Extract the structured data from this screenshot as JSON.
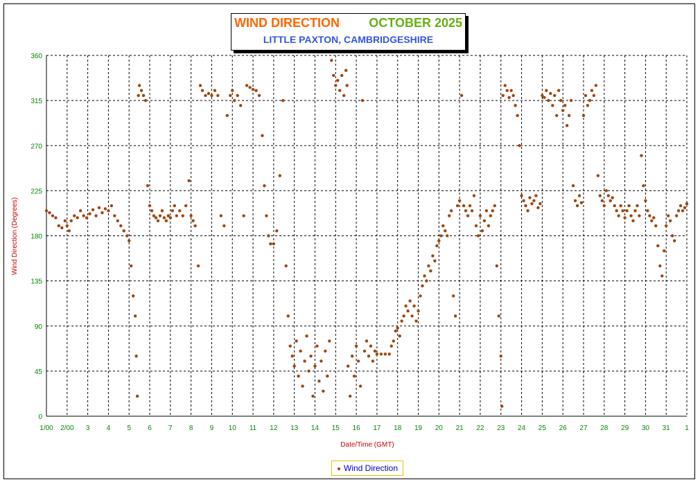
{
  "title": {
    "line1_left": "WIND DIRECTION",
    "line1_right": "OCTOBER 2025",
    "line2": "LITTLE PAXTON, CAMBRIDGESHIRE"
  },
  "colors": {
    "title_orange": "#ff6600",
    "title_green": "#66b010",
    "title_blue": "#3355dd",
    "tick_green": "#008800",
    "axis_label_red": "#cc0000",
    "point_color": "#a0440a",
    "legend_border": "#e8c200"
  },
  "legend": {
    "label": "Wind Direction"
  },
  "chart_data": {
    "type": "scatter",
    "xlabel": "Date/Time (GMT)",
    "ylabel": "Wind Direction (Degrees)",
    "ylim": [
      0,
      360
    ],
    "xlim": [
      1,
      32
    ],
    "grid": true,
    "legend_position": "bottom-center",
    "yticks": [
      0,
      45,
      90,
      135,
      180,
      225,
      270,
      315,
      360
    ],
    "xticks": [
      {
        "x": 1,
        "label": "1/00"
      },
      {
        "x": 2,
        "label": "2/00"
      },
      {
        "x": 3,
        "label": "3"
      },
      {
        "x": 4,
        "label": "4"
      },
      {
        "x": 5,
        "label": "5"
      },
      {
        "x": 6,
        "label": "6"
      },
      {
        "x": 7,
        "label": "7"
      },
      {
        "x": 8,
        "label": "8"
      },
      {
        "x": 9,
        "label": "9"
      },
      {
        "x": 10,
        "label": "10"
      },
      {
        "x": 11,
        "label": "11"
      },
      {
        "x": 12,
        "label": "12"
      },
      {
        "x": 13,
        "label": "13"
      },
      {
        "x": 14,
        "label": "14"
      },
      {
        "x": 15,
        "label": "15"
      },
      {
        "x": 16,
        "label": "16"
      },
      {
        "x": 17,
        "label": "17"
      },
      {
        "x": 18,
        "label": "18"
      },
      {
        "x": 19,
        "label": "19"
      },
      {
        "x": 20,
        "label": "20"
      },
      {
        "x": 21,
        "label": "21"
      },
      {
        "x": 22,
        "label": "22"
      },
      {
        "x": 23,
        "label": "23"
      },
      {
        "x": 24,
        "label": "24"
      },
      {
        "x": 25,
        "label": "25"
      },
      {
        "x": 26,
        "label": "26"
      },
      {
        "x": 27,
        "label": "27"
      },
      {
        "x": 28,
        "label": "28"
      },
      {
        "x": 29,
        "label": "29"
      },
      {
        "x": 30,
        "label": "30"
      },
      {
        "x": 31,
        "label": "31"
      },
      {
        "x": 32,
        "label": "1"
      }
    ],
    "series": [
      {
        "name": "Wind Direction",
        "points": [
          [
            1.0,
            205
          ],
          [
            1.15,
            203
          ],
          [
            1.3,
            200
          ],
          [
            1.45,
            198
          ],
          [
            1.6,
            190
          ],
          [
            1.75,
            188
          ],
          [
            1.9,
            195
          ],
          [
            2.0,
            190
          ],
          [
            2.1,
            185
          ],
          [
            2.2,
            195
          ],
          [
            2.35,
            200
          ],
          [
            2.5,
            198
          ],
          [
            2.65,
            205
          ],
          [
            2.8,
            200
          ],
          [
            2.95,
            198
          ],
          [
            3.1,
            202
          ],
          [
            3.25,
            206
          ],
          [
            3.4,
            200
          ],
          [
            3.55,
            208
          ],
          [
            3.7,
            203
          ],
          [
            3.85,
            207
          ],
          [
            4.0,
            205
          ],
          [
            4.15,
            210
          ],
          [
            4.3,
            200
          ],
          [
            4.45,
            195
          ],
          [
            4.6,
            190
          ],
          [
            4.75,
            185
          ],
          [
            4.9,
            180
          ],
          [
            5.0,
            175
          ],
          [
            5.1,
            150
          ],
          [
            5.2,
            120
          ],
          [
            5.3,
            100
          ],
          [
            5.35,
            60
          ],
          [
            5.4,
            20
          ],
          [
            5.45,
            320
          ],
          [
            5.5,
            330
          ],
          [
            5.6,
            325
          ],
          [
            5.7,
            320
          ],
          [
            5.8,
            315
          ],
          [
            5.9,
            230
          ],
          [
            6.0,
            210
          ],
          [
            6.1,
            205
          ],
          [
            6.2,
            200
          ],
          [
            6.3,
            198
          ],
          [
            6.4,
            195
          ],
          [
            6.5,
            200
          ],
          [
            6.6,
            205
          ],
          [
            6.7,
            198
          ],
          [
            6.8,
            195
          ],
          [
            6.9,
            200
          ],
          [
            7.0,
            198
          ],
          [
            7.1,
            205
          ],
          [
            7.2,
            210
          ],
          [
            7.3,
            200
          ],
          [
            7.45,
            205
          ],
          [
            7.6,
            200
          ],
          [
            7.75,
            210
          ],
          [
            7.9,
            235
          ],
          [
            8.0,
            200
          ],
          [
            8.1,
            195
          ],
          [
            8.2,
            190
          ],
          [
            8.35,
            150
          ],
          [
            8.45,
            330
          ],
          [
            8.55,
            325
          ],
          [
            8.7,
            320
          ],
          [
            8.85,
            322
          ],
          [
            9.0,
            320
          ],
          [
            9.15,
            325
          ],
          [
            9.3,
            320
          ],
          [
            9.45,
            200
          ],
          [
            9.6,
            190
          ],
          [
            9.75,
            300
          ],
          [
            9.9,
            320
          ],
          [
            10.0,
            325
          ],
          [
            10.1,
            315
          ],
          [
            10.25,
            320
          ],
          [
            10.4,
            310
          ],
          [
            10.55,
            200
          ],
          [
            10.7,
            330
          ],
          [
            10.85,
            328
          ],
          [
            11.0,
            326
          ],
          [
            11.15,
            325
          ],
          [
            11.3,
            320
          ],
          [
            11.45,
            280
          ],
          [
            11.55,
            230
          ],
          [
            11.65,
            200
          ],
          [
            11.75,
            180
          ],
          [
            11.85,
            172
          ],
          [
            12.0,
            172
          ],
          [
            12.15,
            185
          ],
          [
            12.3,
            240
          ],
          [
            12.45,
            315
          ],
          [
            12.6,
            150
          ],
          [
            12.7,
            100
          ],
          [
            12.8,
            70
          ],
          [
            12.9,
            60
          ],
          [
            13.0,
            50
          ],
          [
            13.1,
            75
          ],
          [
            13.2,
            40
          ],
          [
            13.3,
            65
          ],
          [
            13.4,
            30
          ],
          [
            13.5,
            55
          ],
          [
            13.6,
            80
          ],
          [
            13.7,
            45
          ],
          [
            13.8,
            60
          ],
          [
            13.9,
            20
          ],
          [
            14.0,
            50
          ],
          [
            14.1,
            70
          ],
          [
            14.2,
            35
          ],
          [
            14.3,
            55
          ],
          [
            14.4,
            25
          ],
          [
            14.5,
            65
          ],
          [
            14.6,
            40
          ],
          [
            14.7,
            75
          ],
          [
            14.8,
            355
          ],
          [
            14.9,
            340
          ],
          [
            15.0,
            330
          ],
          [
            15.1,
            335
          ],
          [
            15.2,
            325
          ],
          [
            15.3,
            340
          ],
          [
            15.4,
            320
          ],
          [
            15.5,
            345
          ],
          [
            15.55,
            330
          ],
          [
            15.6,
            50
          ],
          [
            15.7,
            20
          ],
          [
            15.8,
            60
          ],
          [
            15.9,
            40
          ],
          [
            16.0,
            70
          ],
          [
            16.1,
            55
          ],
          [
            16.2,
            30
          ],
          [
            16.3,
            315
          ],
          [
            16.4,
            65
          ],
          [
            16.5,
            75
          ],
          [
            16.6,
            60
          ],
          [
            16.7,
            70
          ],
          [
            16.8,
            55
          ],
          [
            16.9,
            65
          ],
          [
            17.0,
            62
          ],
          [
            17.2,
            62
          ],
          [
            17.4,
            62
          ],
          [
            17.6,
            62
          ],
          [
            17.7,
            70
          ],
          [
            17.8,
            75
          ],
          [
            17.9,
            85
          ],
          [
            18.0,
            88
          ],
          [
            18.1,
            80
          ],
          [
            18.2,
            95
          ],
          [
            18.3,
            100
          ],
          [
            18.4,
            110
          ],
          [
            18.5,
            105
          ],
          [
            18.6,
            115
          ],
          [
            18.7,
            100
          ],
          [
            18.8,
            110
          ],
          [
            18.9,
            95
          ],
          [
            19.0,
            105
          ],
          [
            19.1,
            120
          ],
          [
            19.2,
            130
          ],
          [
            19.3,
            140
          ],
          [
            19.4,
            135
          ],
          [
            19.5,
            150
          ],
          [
            19.6,
            145
          ],
          [
            19.7,
            160
          ],
          [
            19.8,
            155
          ],
          [
            19.9,
            170
          ],
          [
            20.0,
            175
          ],
          [
            20.1,
            180
          ],
          [
            20.2,
            190
          ],
          [
            20.3,
            185
          ],
          [
            20.4,
            180
          ],
          [
            20.5,
            200
          ],
          [
            20.6,
            205
          ],
          [
            20.7,
            120
          ],
          [
            20.8,
            100
          ],
          [
            20.9,
            210
          ],
          [
            21.0,
            215
          ],
          [
            21.1,
            320
          ],
          [
            21.2,
            210
          ],
          [
            21.3,
            205
          ],
          [
            21.4,
            200
          ],
          [
            21.5,
            210
          ],
          [
            21.6,
            205
          ],
          [
            21.7,
            220
          ],
          [
            21.8,
            190
          ],
          [
            21.9,
            180
          ],
          [
            22.0,
            200
          ],
          [
            22.1,
            185
          ],
          [
            22.2,
            195
          ],
          [
            22.3,
            205
          ],
          [
            22.4,
            190
          ],
          [
            22.5,
            200
          ],
          [
            22.6,
            205
          ],
          [
            22.7,
            210
          ],
          [
            22.8,
            150
          ],
          [
            22.9,
            100
          ],
          [
            23.0,
            60
          ],
          [
            23.05,
            10
          ],
          [
            23.1,
            320
          ],
          [
            23.2,
            330
          ],
          [
            23.3,
            325
          ],
          [
            23.4,
            318
          ],
          [
            23.5,
            325
          ],
          [
            23.6,
            320
          ],
          [
            23.7,
            310
          ],
          [
            23.8,
            300
          ],
          [
            23.9,
            270
          ],
          [
            24.0,
            220
          ],
          [
            24.1,
            215
          ],
          [
            24.2,
            210
          ],
          [
            24.3,
            205
          ],
          [
            24.4,
            218
          ],
          [
            24.5,
            212
          ],
          [
            24.6,
            215
          ],
          [
            24.7,
            220
          ],
          [
            24.8,
            208
          ],
          [
            24.9,
            212
          ],
          [
            25.0,
            320
          ],
          [
            25.1,
            318
          ],
          [
            25.2,
            325
          ],
          [
            25.3,
            315
          ],
          [
            25.4,
            322
          ],
          [
            25.5,
            310
          ],
          [
            25.6,
            320
          ],
          [
            25.7,
            300
          ],
          [
            25.8,
            325
          ],
          [
            25.9,
            315
          ],
          [
            26.0,
            305
          ],
          [
            26.1,
            310
          ],
          [
            26.2,
            290
          ],
          [
            26.3,
            300
          ],
          [
            26.4,
            315
          ],
          [
            26.5,
            230
          ],
          [
            26.6,
            215
          ],
          [
            26.7,
            210
          ],
          [
            26.8,
            220
          ],
          [
            26.9,
            213
          ],
          [
            27.0,
            300
          ],
          [
            27.1,
            320
          ],
          [
            27.2,
            310
          ],
          [
            27.3,
            315
          ],
          [
            27.4,
            325
          ],
          [
            27.5,
            320
          ],
          [
            27.6,
            330
          ],
          [
            27.7,
            240
          ],
          [
            27.8,
            220
          ],
          [
            27.9,
            215
          ],
          [
            28.0,
            210
          ],
          [
            28.1,
            225
          ],
          [
            28.2,
            220
          ],
          [
            28.3,
            215
          ],
          [
            28.4,
            218
          ],
          [
            28.5,
            210
          ],
          [
            28.6,
            205
          ],
          [
            28.7,
            200
          ],
          [
            28.8,
            210
          ],
          [
            28.9,
            205
          ],
          [
            29.0,
            198
          ],
          [
            29.1,
            205
          ],
          [
            29.2,
            210
          ],
          [
            29.3,
            200
          ],
          [
            29.4,
            195
          ],
          [
            29.5,
            205
          ],
          [
            29.6,
            210
          ],
          [
            29.7,
            200
          ],
          [
            29.8,
            260
          ],
          [
            29.9,
            230
          ],
          [
            30.0,
            215
          ],
          [
            30.1,
            205
          ],
          [
            30.2,
            200
          ],
          [
            30.3,
            195
          ],
          [
            30.4,
            198
          ],
          [
            30.5,
            190
          ],
          [
            30.6,
            170
          ],
          [
            30.7,
            150
          ],
          [
            30.8,
            140
          ],
          [
            30.9,
            165
          ],
          [
            31.0,
            190
          ],
          [
            31.1,
            200
          ],
          [
            31.2,
            195
          ],
          [
            31.3,
            180
          ],
          [
            31.4,
            175
          ],
          [
            31.5,
            200
          ],
          [
            31.6,
            205
          ],
          [
            31.7,
            210
          ],
          [
            31.8,
            205
          ],
          [
            31.9,
            208
          ],
          [
            32.0,
            212
          ]
        ]
      }
    ]
  }
}
